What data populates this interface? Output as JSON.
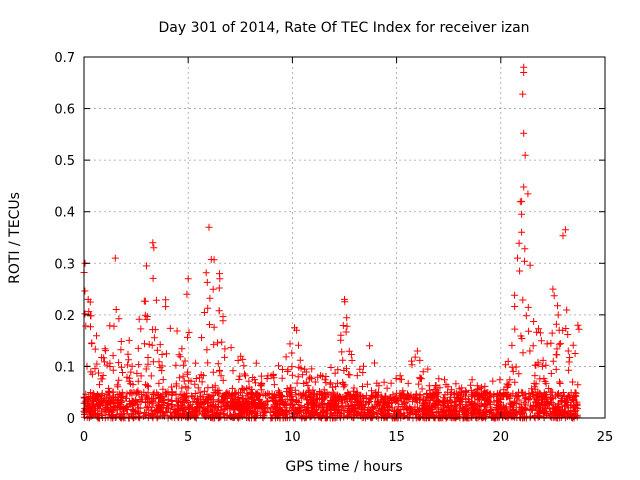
{
  "chart_data": {
    "type": "scatter",
    "title": "Day 301 of 2014, Rate Of TEC Index for receiver izan",
    "xlabel": "GPS time / hours",
    "ylabel": "ROTI / TECUs",
    "xlim": [
      0,
      25
    ],
    "ylim": [
      0,
      0.7
    ],
    "xticks": [
      0,
      5,
      10,
      15,
      20,
      25
    ],
    "xtick_labels": [
      "0",
      "5",
      "10",
      "15",
      "20",
      "25"
    ],
    "yticks": [
      0,
      0.1,
      0.2,
      0.3,
      0.4,
      0.5,
      0.6,
      0.7
    ],
    "ytick_labels": [
      "0",
      "0.1",
      "0.2",
      "0.3",
      "0.4",
      "0.5",
      "0.6",
      "0.7"
    ],
    "grid": true,
    "marker": "plus",
    "series_color": "#ff0000",
    "x_data_range": [
      0,
      23.7
    ],
    "baseline_noise_range": [
      0,
      0.05
    ],
    "envelope": [
      {
        "x": 0.0,
        "y": 0.3
      },
      {
        "x": 0.3,
        "y": 0.23
      },
      {
        "x": 0.6,
        "y": 0.18
      },
      {
        "x": 1.0,
        "y": 0.15
      },
      {
        "x": 1.5,
        "y": 0.31
      },
      {
        "x": 2.0,
        "y": 0.15
      },
      {
        "x": 2.5,
        "y": 0.16
      },
      {
        "x": 3.0,
        "y": 0.29
      },
      {
        "x": 3.3,
        "y": 0.34
      },
      {
        "x": 3.7,
        "y": 0.25
      },
      {
        "x": 4.3,
        "y": 0.22
      },
      {
        "x": 4.8,
        "y": 0.19
      },
      {
        "x": 5.0,
        "y": 0.27
      },
      {
        "x": 5.5,
        "y": 0.08
      },
      {
        "x": 6.0,
        "y": 0.37
      },
      {
        "x": 6.5,
        "y": 0.28
      },
      {
        "x": 7.0,
        "y": 0.15
      },
      {
        "x": 8.0,
        "y": 0.11
      },
      {
        "x": 9.0,
        "y": 0.1
      },
      {
        "x": 10.0,
        "y": 0.17
      },
      {
        "x": 11.0,
        "y": 0.09
      },
      {
        "x": 12.0,
        "y": 0.1
      },
      {
        "x": 12.5,
        "y": 0.23
      },
      {
        "x": 13.0,
        "y": 0.07
      },
      {
        "x": 13.7,
        "y": 0.15
      },
      {
        "x": 14.5,
        "y": 0.07
      },
      {
        "x": 15.2,
        "y": 0.09
      },
      {
        "x": 16.0,
        "y": 0.13
      },
      {
        "x": 17.0,
        "y": 0.08
      },
      {
        "x": 18.0,
        "y": 0.07
      },
      {
        "x": 19.0,
        "y": 0.08
      },
      {
        "x": 19.5,
        "y": 0.1
      },
      {
        "x": 20.0,
        "y": 0.1
      },
      {
        "x": 20.5,
        "y": 0.2
      },
      {
        "x": 20.8,
        "y": 0.31
      },
      {
        "x": 21.1,
        "y": 0.68
      },
      {
        "x": 21.5,
        "y": 0.24
      },
      {
        "x": 22.0,
        "y": 0.16
      },
      {
        "x": 22.5,
        "y": 0.25
      },
      {
        "x": 23.0,
        "y": 0.36
      },
      {
        "x": 23.3,
        "y": 0.12
      },
      {
        "x": 23.7,
        "y": 0.18
      }
    ],
    "highlights": [
      {
        "x": 21.1,
        "y": 0.68
      },
      {
        "x": 21.1,
        "y": 0.67
      },
      {
        "x": 21.05,
        "y": 0.628
      },
      {
        "x": 21.1,
        "y": 0.552
      },
      {
        "x": 21.1,
        "y": 0.448
      },
      {
        "x": 21.0,
        "y": 0.42
      },
      {
        "x": 21.0,
        "y": 0.395
      },
      {
        "x": 21.0,
        "y": 0.36
      },
      {
        "x": 21.15,
        "y": 0.328
      },
      {
        "x": 20.8,
        "y": 0.31
      },
      {
        "x": 20.9,
        "y": 0.285
      },
      {
        "x": 23.1,
        "y": 0.365
      },
      {
        "x": 6.0,
        "y": 0.37
      },
      {
        "x": 3.3,
        "y": 0.34
      },
      {
        "x": 3.35,
        "y": 0.33
      },
      {
        "x": 1.5,
        "y": 0.31
      },
      {
        "x": 0.05,
        "y": 0.3
      },
      {
        "x": 5.0,
        "y": 0.27
      },
      {
        "x": 6.5,
        "y": 0.28
      },
      {
        "x": 3.0,
        "y": 0.295
      },
      {
        "x": 22.5,
        "y": 0.25
      },
      {
        "x": 12.5,
        "y": 0.23
      },
      {
        "x": 0.2,
        "y": 0.23
      },
      {
        "x": 0.3,
        "y": 0.225
      },
      {
        "x": 10.1,
        "y": 0.175
      },
      {
        "x": 10.2,
        "y": 0.17
      },
      {
        "x": 23.7,
        "y": 0.18
      },
      {
        "x": 23.75,
        "y": 0.172
      },
      {
        "x": 13.7,
        "y": 0.14
      },
      {
        "x": 16.0,
        "y": 0.13
      }
    ]
  }
}
